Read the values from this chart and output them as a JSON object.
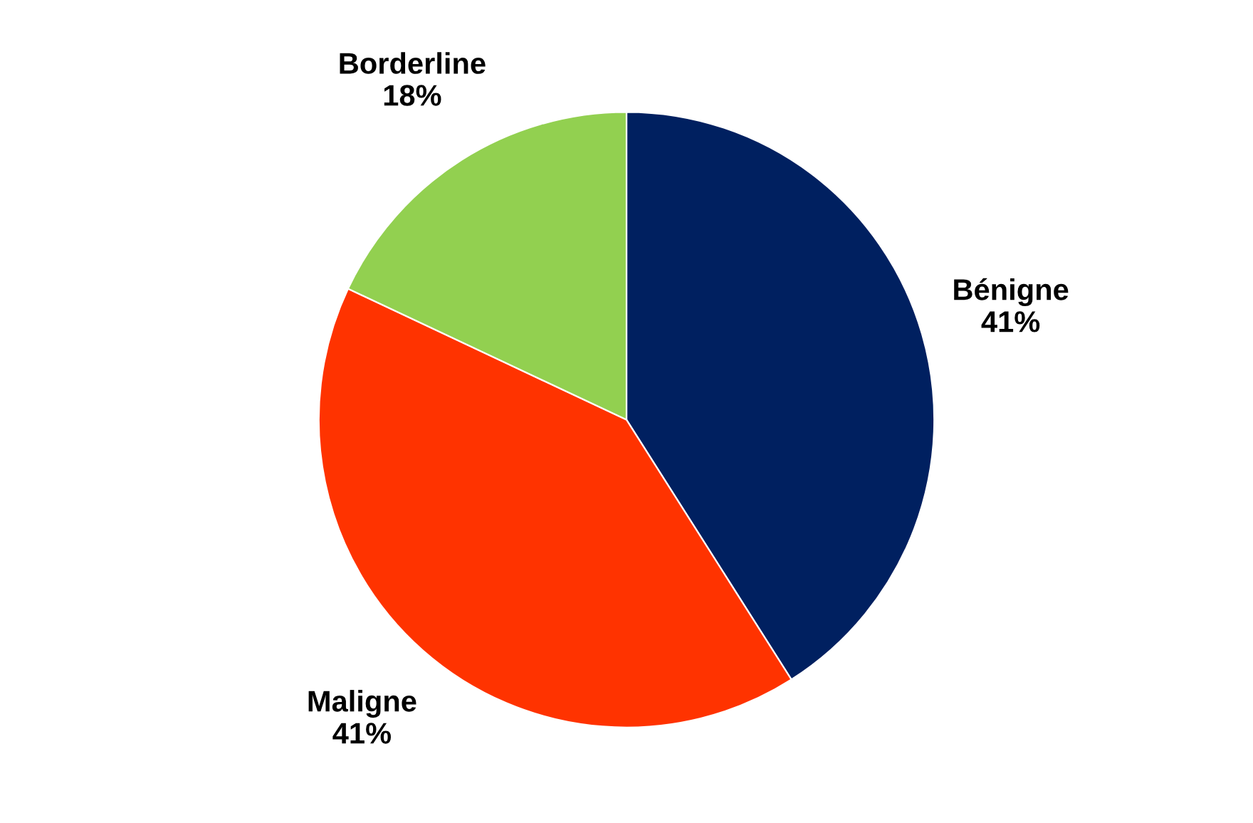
{
  "chart_data": {
    "type": "pie",
    "categories": [
      "Bénigne",
      "Maligne",
      "Borderline"
    ],
    "values": [
      41,
      41,
      18
    ],
    "colors": [
      "#002060",
      "#ff3300",
      "#92d050"
    ],
    "value_labels": [
      "41%",
      "41%",
      "18%"
    ]
  }
}
